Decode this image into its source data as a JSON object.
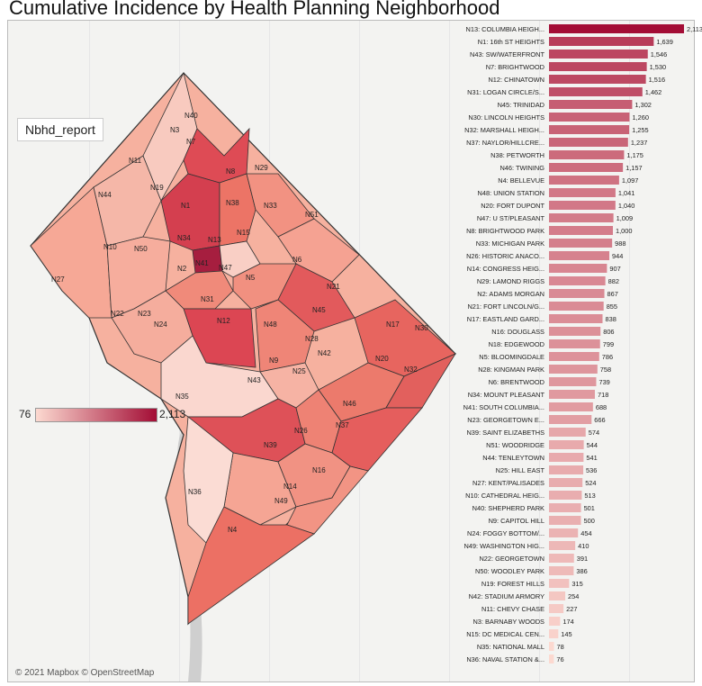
{
  "title": "Cumulative Incidence by Health Planning Neighborhood",
  "filter_label": "Nbhd_report",
  "attribution": "© 2021 Mapbox © OpenStreetMap",
  "legend": {
    "min": "76",
    "max": "2,113"
  },
  "colors": {
    "low": "#fcd9d0",
    "high": "#a30d35"
  },
  "map_labels": [
    "N40",
    "N3",
    "N7",
    "N11",
    "N8",
    "N29",
    "N19",
    "N44",
    "N1",
    "N38",
    "N33",
    "N51",
    "N15",
    "N13",
    "N34",
    "N10",
    "N50",
    "N6",
    "N41",
    "N47",
    "N2",
    "N5",
    "N27",
    "N21",
    "N31",
    "N12",
    "N45",
    "N22",
    "N23",
    "N24",
    "N48",
    "N17",
    "N30",
    "N28",
    "N42",
    "N9",
    "N25",
    "N20",
    "N32",
    "N43",
    "N35",
    "N46",
    "N37",
    "N26",
    "N39",
    "N16",
    "N14",
    "N49",
    "N36",
    "N4"
  ],
  "chart_data": {
    "type": "bar",
    "orientation": "horizontal",
    "categories": [
      "N13: COLUMBIA HEIGH...",
      "N1: 16th ST HEIGHTS",
      "N43: SW/WATERFRONT",
      "N7: BRIGHTWOOD",
      "N12: CHINATOWN",
      "N31: LOGAN CIRCLE/S...",
      "N45: TRINIDAD",
      "N30: LINCOLN HEIGHTS",
      "N32: MARSHALL HEIGH...",
      "N37: NAYLOR/HILLCRE...",
      "N38: PETWORTH",
      "N46: TWINING",
      "N4: BELLEVUE",
      "N48: UNION STATION",
      "N20: FORT DUPONT",
      "N47: U ST/PLEASANT",
      "N8: BRIGHTWOOD PARK",
      "N33: MICHIGAN PARK",
      "N26: HISTORIC ANACO...",
      "N14: CONGRESS HEIG...",
      "N29: LAMOND RIGGS",
      "N2: ADAMS MORGAN",
      "N21: FORT LINCOLN/G...",
      "N17: EASTLAND GARD...",
      "N16: DOUGLASS",
      "N18: EDGEWOOD",
      "N5: BLOOMINGDALE",
      "N28: KINGMAN PARK",
      "N6: BRENTWOOD",
      "N34: MOUNT PLEASANT",
      "N41: SOUTH COLUMBIA...",
      "N23: GEORGETOWN E...",
      "N39: SAINT ELIZABETHS",
      "N51: WOODRIDGE",
      "N44: TENLEYTOWN",
      "N25: HILL EAST",
      "N27: KENT/PALISADES",
      "N10: CATHEDRAL HEIG...",
      "N40: SHEPHERD PARK",
      "N9: CAPITOL HILL",
      "N24: FOGGY BOTTOM/...",
      "N49: WASHINGTON HIG...",
      "N22: GEORGETOWN",
      "N50: WOODLEY PARK",
      "N19: FOREST HILLS",
      "N42: STADIUM ARMORY",
      "N11: CHEVY CHASE",
      "N3: BARNABY WOODS",
      "N15: DC MEDICAL CEN...",
      "N35: NATIONAL MALL",
      "N36: NAVAL STATION &..."
    ],
    "values": [
      2113,
      1639,
      1546,
      1530,
      1516,
      1462,
      1302,
      1260,
      1255,
      1237,
      1175,
      1157,
      1097,
      1041,
      1040,
      1009,
      1000,
      988,
      944,
      907,
      882,
      867,
      855,
      838,
      806,
      799,
      786,
      758,
      739,
      718,
      688,
      666,
      574,
      544,
      541,
      536,
      524,
      513,
      501,
      500,
      454,
      410,
      391,
      386,
      315,
      254,
      227,
      174,
      145,
      78,
      76
    ],
    "value_labels": [
      "2,113",
      "1,639",
      "1,546",
      "1,530",
      "1,516",
      "1,462",
      "1,302",
      "1,260",
      "1,255",
      "1,237",
      "1,175",
      "1,157",
      "1,097",
      "1,041",
      "1,040",
      "1,009",
      "1,000",
      "988",
      "944",
      "907",
      "882",
      "867",
      "855",
      "838",
      "806",
      "799",
      "786",
      "758",
      "739",
      "718",
      "688",
      "666",
      "574",
      "544",
      "541",
      "536",
      "524",
      "513",
      "501",
      "500",
      "454",
      "410",
      "391",
      "386",
      "315",
      "254",
      "227",
      "174",
      "145",
      "78",
      "76"
    ],
    "xlim": [
      0,
      2113
    ]
  }
}
